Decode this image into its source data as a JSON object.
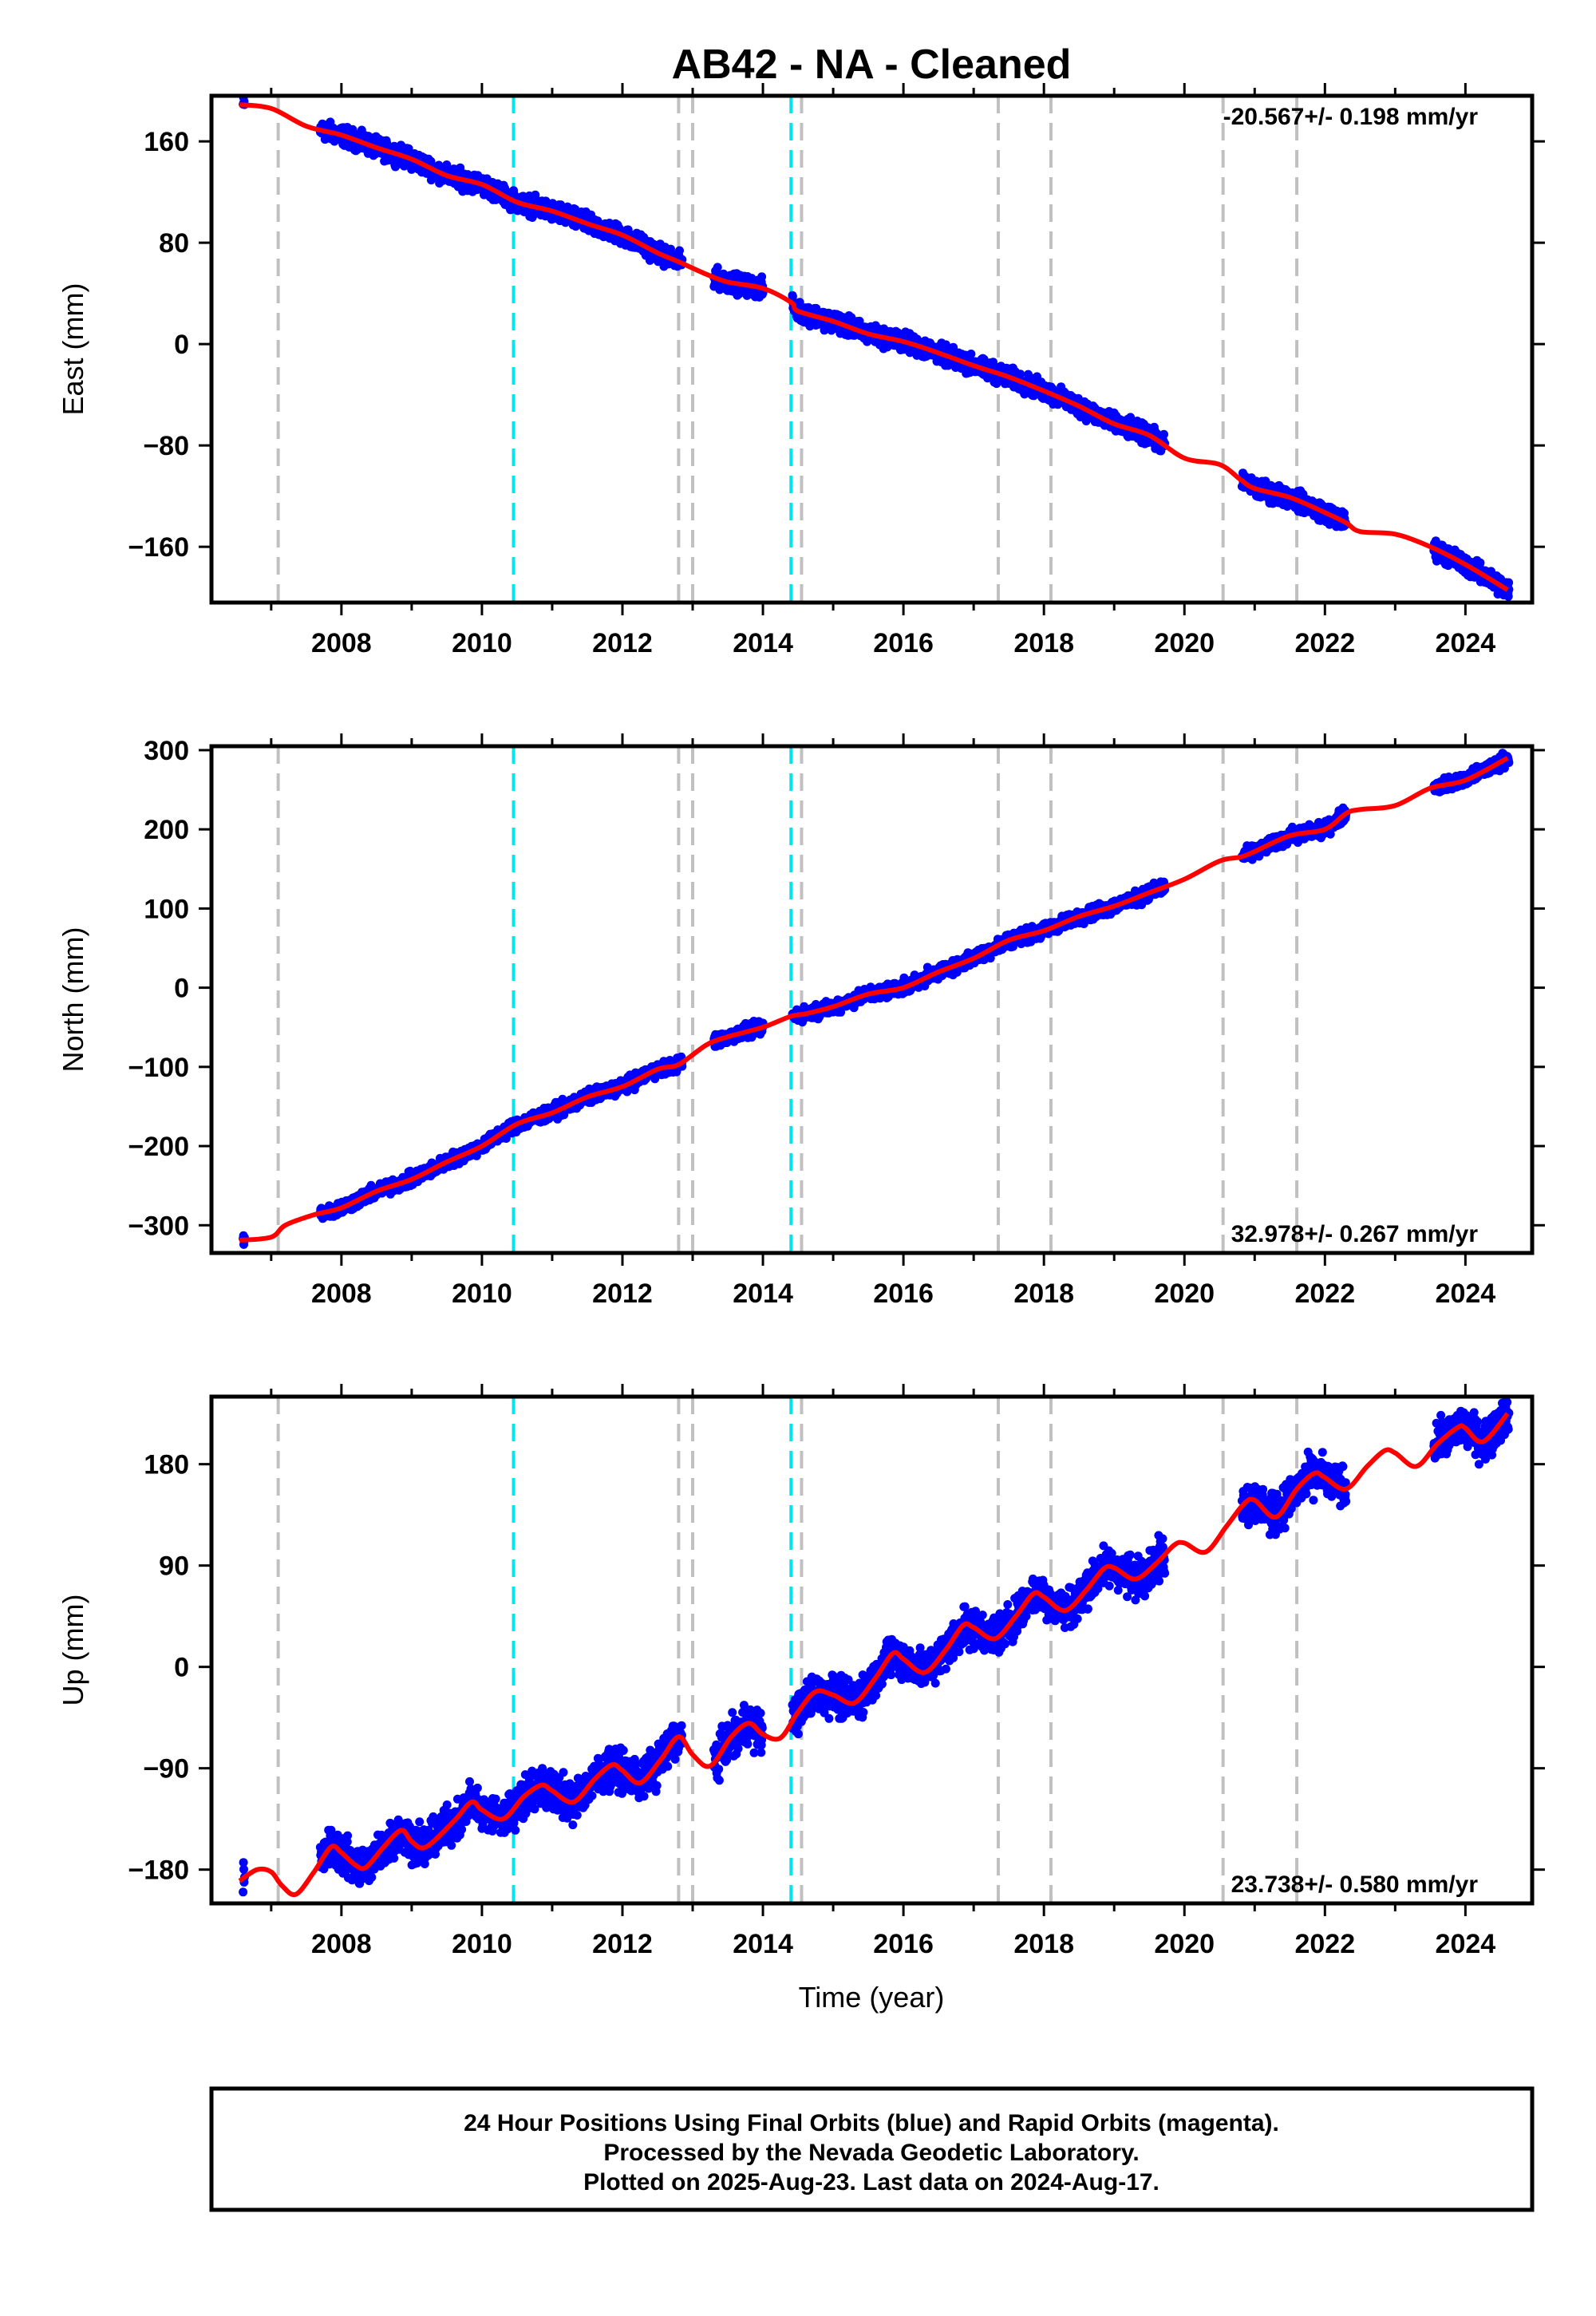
{
  "title": "AB42  - NA - Cleaned",
  "xlabel": "Time (year)",
  "footer": {
    "line1": "24 Hour Positions Using Final Orbits (blue) and Rapid Orbits (magenta).",
    "line2": "Processed by the Nevada Geodetic Laboratory.",
    "line3": "Plotted on 2025-Aug-23. Last data on 2024-Aug-17."
  },
  "colors": {
    "data": "#0000ff",
    "model": "#ff0000",
    "event_gray": "#c0c0c0",
    "event_cyan": "#00e5ee"
  },
  "chart_data": [
    {
      "type": "scatter",
      "component": "East",
      "ylabel": "East (mm)",
      "rate_text": "-20.567+/- 0.198 mm/yr",
      "rate_position": "top-right",
      "xlim": [
        2006.15,
        2024.95
      ],
      "ylim": [
        -204,
        196
      ],
      "yticks": [
        160,
        80,
        0,
        -80,
        -160
      ],
      "yticklabels": [
        "160",
        "80",
        "0",
        "−80",
        "−160"
      ],
      "xticks": [
        2008,
        2010,
        2012,
        2014,
        2016,
        2018,
        2020,
        2022,
        2024
      ],
      "model_curve": [
        [
          2006.55,
          189
        ],
        [
          2007.0,
          186
        ],
        [
          2007.5,
          172
        ],
        [
          2008.0,
          165
        ],
        [
          2008.5,
          155
        ],
        [
          2009.0,
          146
        ],
        [
          2009.5,
          133
        ],
        [
          2010.0,
          126
        ],
        [
          2010.5,
          112
        ],
        [
          2011.0,
          105
        ],
        [
          2011.5,
          95
        ],
        [
          2012.0,
          86
        ],
        [
          2012.5,
          72
        ],
        [
          2012.8,
          65
        ],
        [
          2013.2,
          55
        ],
        [
          2013.5,
          49
        ],
        [
          2014.0,
          44
        ],
        [
          2014.4,
          33
        ],
        [
          2014.5,
          26
        ],
        [
          2015.0,
          18
        ],
        [
          2015.5,
          8
        ],
        [
          2016.0,
          2
        ],
        [
          2016.5,
          -7
        ],
        [
          2017.0,
          -17
        ],
        [
          2017.5,
          -26
        ],
        [
          2018.0,
          -37
        ],
        [
          2018.5,
          -49
        ],
        [
          2019.0,
          -63
        ],
        [
          2019.5,
          -72
        ],
        [
          2020.0,
          -90
        ],
        [
          2020.5,
          -95
        ],
        [
          2020.8,
          -107
        ],
        [
          2021.0,
          -114
        ],
        [
          2021.5,
          -121
        ],
        [
          2022.0,
          -133
        ],
        [
          2022.3,
          -141
        ],
        [
          2022.5,
          -148
        ],
        [
          2023.0,
          -150
        ],
        [
          2023.5,
          -160
        ],
        [
          2024.0,
          -174
        ],
        [
          2024.6,
          -194
        ]
      ],
      "data_segments": [
        [
          2006.6,
          2006.62
        ],
        [
          2007.7,
          2009.95
        ],
        [
          2010.0,
          2012.85
        ],
        [
          2013.3,
          2014.0
        ],
        [
          2014.42,
          2019.72
        ],
        [
          2020.82,
          2022.3
        ],
        [
          2023.55,
          2024.62
        ]
      ],
      "scatter_noise_mm": 6,
      "events_gray": [
        2007.1,
        2012.8,
        2013.0,
        2014.55,
        2017.35,
        2018.1,
        2020.55,
        2021.6
      ],
      "events_cyan": [
        2010.45,
        2014.4
      ]
    },
    {
      "type": "scatter",
      "component": "North",
      "ylabel": "North (mm)",
      "rate_text": "32.978+/- 0.267 mm/yr",
      "rate_position": "bottom-right",
      "xlim": [
        2006.15,
        2024.95
      ],
      "ylim": [
        -335,
        305
      ],
      "yticks": [
        300,
        200,
        100,
        0,
        -100,
        -200,
        -300
      ],
      "yticklabels": [
        "300",
        "200",
        "100",
        "0",
        "−100",
        "−200",
        "−300"
      ],
      "xticks": [
        2008,
        2010,
        2012,
        2014,
        2016,
        2018,
        2020,
        2022,
        2024
      ],
      "model_curve": [
        [
          2006.55,
          -319
        ],
        [
          2007.0,
          -315
        ],
        [
          2007.2,
          -300
        ],
        [
          2007.6,
          -287
        ],
        [
          2008.0,
          -278
        ],
        [
          2008.5,
          -257
        ],
        [
          2009.0,
          -242
        ],
        [
          2009.5,
          -220
        ],
        [
          2010.0,
          -200
        ],
        [
          2010.5,
          -172
        ],
        [
          2011.0,
          -158
        ],
        [
          2011.5,
          -138
        ],
        [
          2012.0,
          -125
        ],
        [
          2012.5,
          -103
        ],
        [
          2012.8,
          -97
        ],
        [
          2013.2,
          -72
        ],
        [
          2013.5,
          -62
        ],
        [
          2014.0,
          -50
        ],
        [
          2014.4,
          -36
        ],
        [
          2014.6,
          -33
        ],
        [
          2015.0,
          -24
        ],
        [
          2015.5,
          -8
        ],
        [
          2016.0,
          0
        ],
        [
          2016.5,
          20
        ],
        [
          2017.0,
          37
        ],
        [
          2017.5,
          60
        ],
        [
          2018.0,
          72
        ],
        [
          2018.5,
          90
        ],
        [
          2019.0,
          103
        ],
        [
          2019.5,
          120
        ],
        [
          2020.0,
          137
        ],
        [
          2020.5,
          160
        ],
        [
          2020.8,
          165
        ],
        [
          2021.0,
          172
        ],
        [
          2021.5,
          192
        ],
        [
          2022.0,
          200
        ],
        [
          2022.3,
          220
        ],
        [
          2022.5,
          225
        ],
        [
          2023.0,
          230
        ],
        [
          2023.5,
          252
        ],
        [
          2024.0,
          262
        ],
        [
          2024.6,
          290
        ]
      ],
      "data_segments": [
        [
          2006.6,
          2006.62
        ],
        [
          2007.7,
          2009.95
        ],
        [
          2010.0,
          2012.85
        ],
        [
          2013.3,
          2014.0
        ],
        [
          2014.42,
          2019.72
        ],
        [
          2020.82,
          2022.3
        ],
        [
          2023.55,
          2024.62
        ]
      ],
      "scatter_noise_mm": 7,
      "events_gray": [
        2007.1,
        2012.8,
        2013.0,
        2014.55,
        2017.35,
        2018.1,
        2020.55,
        2021.6
      ],
      "events_cyan": [
        2010.45,
        2014.4
      ]
    },
    {
      "type": "scatter",
      "component": "Up",
      "ylabel": "Up (mm)",
      "rate_text": "23.738+/- 0.580 mm/yr",
      "rate_position": "bottom-right",
      "xlim": [
        2006.15,
        2024.95
      ],
      "ylim": [
        -210,
        240
      ],
      "yticks": [
        180,
        90,
        0,
        -90,
        -180
      ],
      "yticklabels": [
        "180",
        "90",
        "0",
        "−90",
        "−180"
      ],
      "xticks": [
        2008,
        2010,
        2012,
        2014,
        2016,
        2018,
        2020,
        2022,
        2024
      ],
      "model_curve": [
        [
          2006.55,
          -190
        ],
        [
          2006.8,
          -180
        ],
        [
          2007.0,
          -182
        ],
        [
          2007.15,
          -194
        ],
        [
          2007.35,
          -202
        ],
        [
          2007.6,
          -183
        ],
        [
          2007.85,
          -160
        ],
        [
          2008.0,
          -165
        ],
        [
          2008.2,
          -176
        ],
        [
          2008.35,
          -178
        ],
        [
          2008.6,
          -160
        ],
        [
          2008.85,
          -145
        ],
        [
          2009.0,
          -155
        ],
        [
          2009.2,
          -160
        ],
        [
          2009.6,
          -137
        ],
        [
          2009.85,
          -120
        ],
        [
          2010.0,
          -127
        ],
        [
          2010.3,
          -135
        ],
        [
          2010.6,
          -115
        ],
        [
          2010.85,
          -105
        ],
        [
          2011.0,
          -110
        ],
        [
          2011.3,
          -120
        ],
        [
          2011.6,
          -100
        ],
        [
          2011.85,
          -87
        ],
        [
          2012.0,
          -92
        ],
        [
          2012.25,
          -103
        ],
        [
          2012.55,
          -82
        ],
        [
          2012.8,
          -62
        ],
        [
          2013.0,
          -78
        ],
        [
          2013.25,
          -88
        ],
        [
          2013.55,
          -62
        ],
        [
          2013.8,
          -50
        ],
        [
          2014.0,
          -60
        ],
        [
          2014.25,
          -63
        ],
        [
          2014.5,
          -40
        ],
        [
          2014.75,
          -22
        ],
        [
          2015.0,
          -25
        ],
        [
          2015.3,
          -32
        ],
        [
          2015.6,
          -10
        ],
        [
          2015.85,
          12
        ],
        [
          2016.0,
          7
        ],
        [
          2016.3,
          -5
        ],
        [
          2016.6,
          15
        ],
        [
          2016.85,
          37
        ],
        [
          2017.0,
          35
        ],
        [
          2017.3,
          25
        ],
        [
          2017.6,
          45
        ],
        [
          2017.85,
          65
        ],
        [
          2018.0,
          62
        ],
        [
          2018.3,
          50
        ],
        [
          2018.6,
          68
        ],
        [
          2018.85,
          87
        ],
        [
          2019.0,
          88
        ],
        [
          2019.3,
          78
        ],
        [
          2019.6,
          92
        ],
        [
          2019.85,
          108
        ],
        [
          2020.0,
          110
        ],
        [
          2020.3,
          102
        ],
        [
          2020.6,
          125
        ],
        [
          2020.85,
          145
        ],
        [
          2021.0,
          148
        ],
        [
          2021.3,
          133
        ],
        [
          2021.6,
          158
        ],
        [
          2021.85,
          172
        ],
        [
          2022.0,
          168
        ],
        [
          2022.3,
          158
        ],
        [
          2022.6,
          178
        ],
        [
          2022.85,
          192
        ],
        [
          2023.0,
          190
        ],
        [
          2023.3,
          178
        ],
        [
          2023.6,
          198
        ],
        [
          2023.9,
          213
        ],
        [
          2024.0,
          212
        ],
        [
          2024.25,
          200
        ],
        [
          2024.6,
          225
        ]
      ],
      "data_segments": [
        [
          2006.6,
          2006.62
        ],
        [
          2007.7,
          2009.95
        ],
        [
          2010.0,
          2012.85
        ],
        [
          2013.3,
          2014.0
        ],
        [
          2014.42,
          2019.72
        ],
        [
          2020.82,
          2022.3
        ],
        [
          2023.55,
          2024.62
        ]
      ],
      "scatter_noise_mm": 14,
      "events_gray": [
        2007.1,
        2012.8,
        2013.0,
        2014.55,
        2017.35,
        2018.1,
        2020.55,
        2021.6
      ],
      "events_cyan": [
        2010.45,
        2014.4
      ]
    }
  ]
}
